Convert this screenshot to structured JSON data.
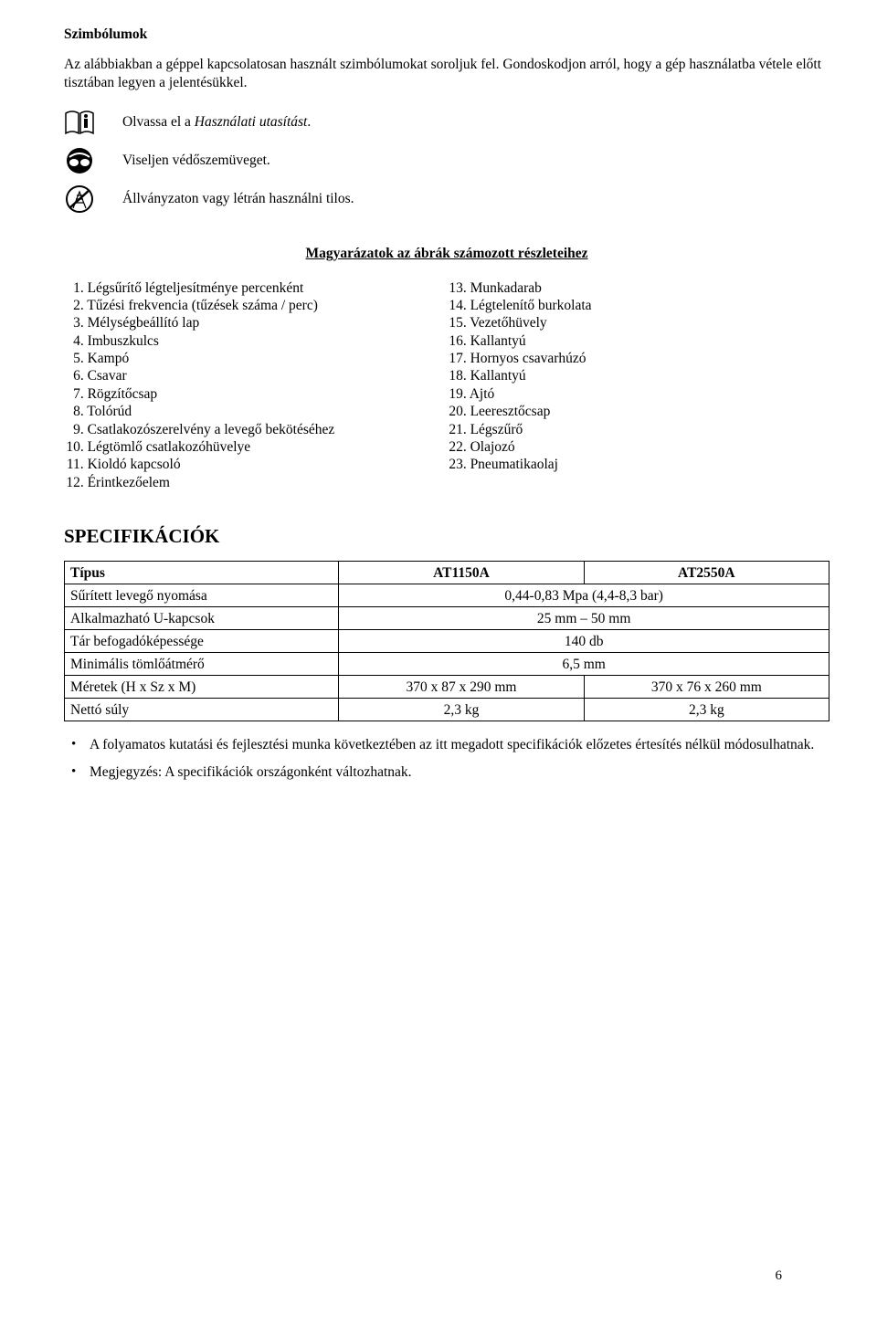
{
  "section1": {
    "title": "Szimbólumok",
    "intro": "Az alábbiakban a géppel kapcsolatosan használt szimbólumokat soroljuk fel. Gondoskodjon arról, hogy a gép használatba vétele előtt tisztában legyen a jelentésükkel.",
    "symbols": [
      {
        "icon": "manual-icon",
        "prefix": "Olvassa el a ",
        "italic": "Használati utasítást",
        "suffix": "."
      },
      {
        "icon": "goggles-icon",
        "text": "Viseljen védőszemüveget."
      },
      {
        "icon": "no-ladder-icon",
        "text": "Állványzaton vagy létrán használni tilos."
      }
    ]
  },
  "section2": {
    "title": "Magyarázatok az ábrák számozott részleteihez",
    "left": [
      "Légsűrítő légteljesítménye percenként",
      "Tűzési frekvencia (tűzések száma / perc)",
      "Mélységbeállító lap",
      "Imbuszkulcs",
      "Kampó",
      "Csavar",
      "Rögzítőcsap",
      "Tolórúd",
      "Csatlakozószerelvény a levegő bekötéséhez",
      "Légtömlő csatlakozóhüvelye",
      "Kioldó kapcsoló",
      "Érintkezőelem"
    ],
    "right": [
      "Munkadarab",
      "Légtelenítő burkolata",
      "Vezetőhüvely",
      "Kallantyú",
      "Hornyos csavarhúzó",
      "Kallantyú",
      "Ajtó",
      "Leeresztőcsap",
      "Légszűrő",
      "Olajozó",
      "Pneumatikaolaj"
    ]
  },
  "spec": {
    "heading": "SPECIFIKÁCIÓK",
    "type_label": "Típus",
    "models": [
      "AT1150A",
      "AT2550A"
    ],
    "rows": [
      {
        "label": "Sűrített levegő nyomása",
        "value": "0,44-0,83 Mpa (4,4-8,3 bar)",
        "span": true
      },
      {
        "label": "Alkalmazható U-kapcsok",
        "value": "25 mm – 50 mm",
        "span": true
      },
      {
        "label": "Tár befogadóképessége",
        "value": "140 db",
        "span": true
      },
      {
        "label": "Minimális tömlőátmérő",
        "value": "6,5 mm",
        "span": true
      },
      {
        "label": "Méretek (H x Sz x M)",
        "values": [
          "370 x 87 x 290 mm",
          "370 x 76 x 260 mm"
        ],
        "span": false
      },
      {
        "label": "Nettó súly",
        "values": [
          "2,3 kg",
          "2,3 kg"
        ],
        "span": false
      }
    ]
  },
  "notes": [
    "A folyamatos kutatási és fejlesztési munka következtében az itt megadott specifikációk előzetes értesítés nélkül módosulhatnak.",
    "Megjegyzés: A specifikációk országonként változhatnak."
  ],
  "page_number": "6"
}
